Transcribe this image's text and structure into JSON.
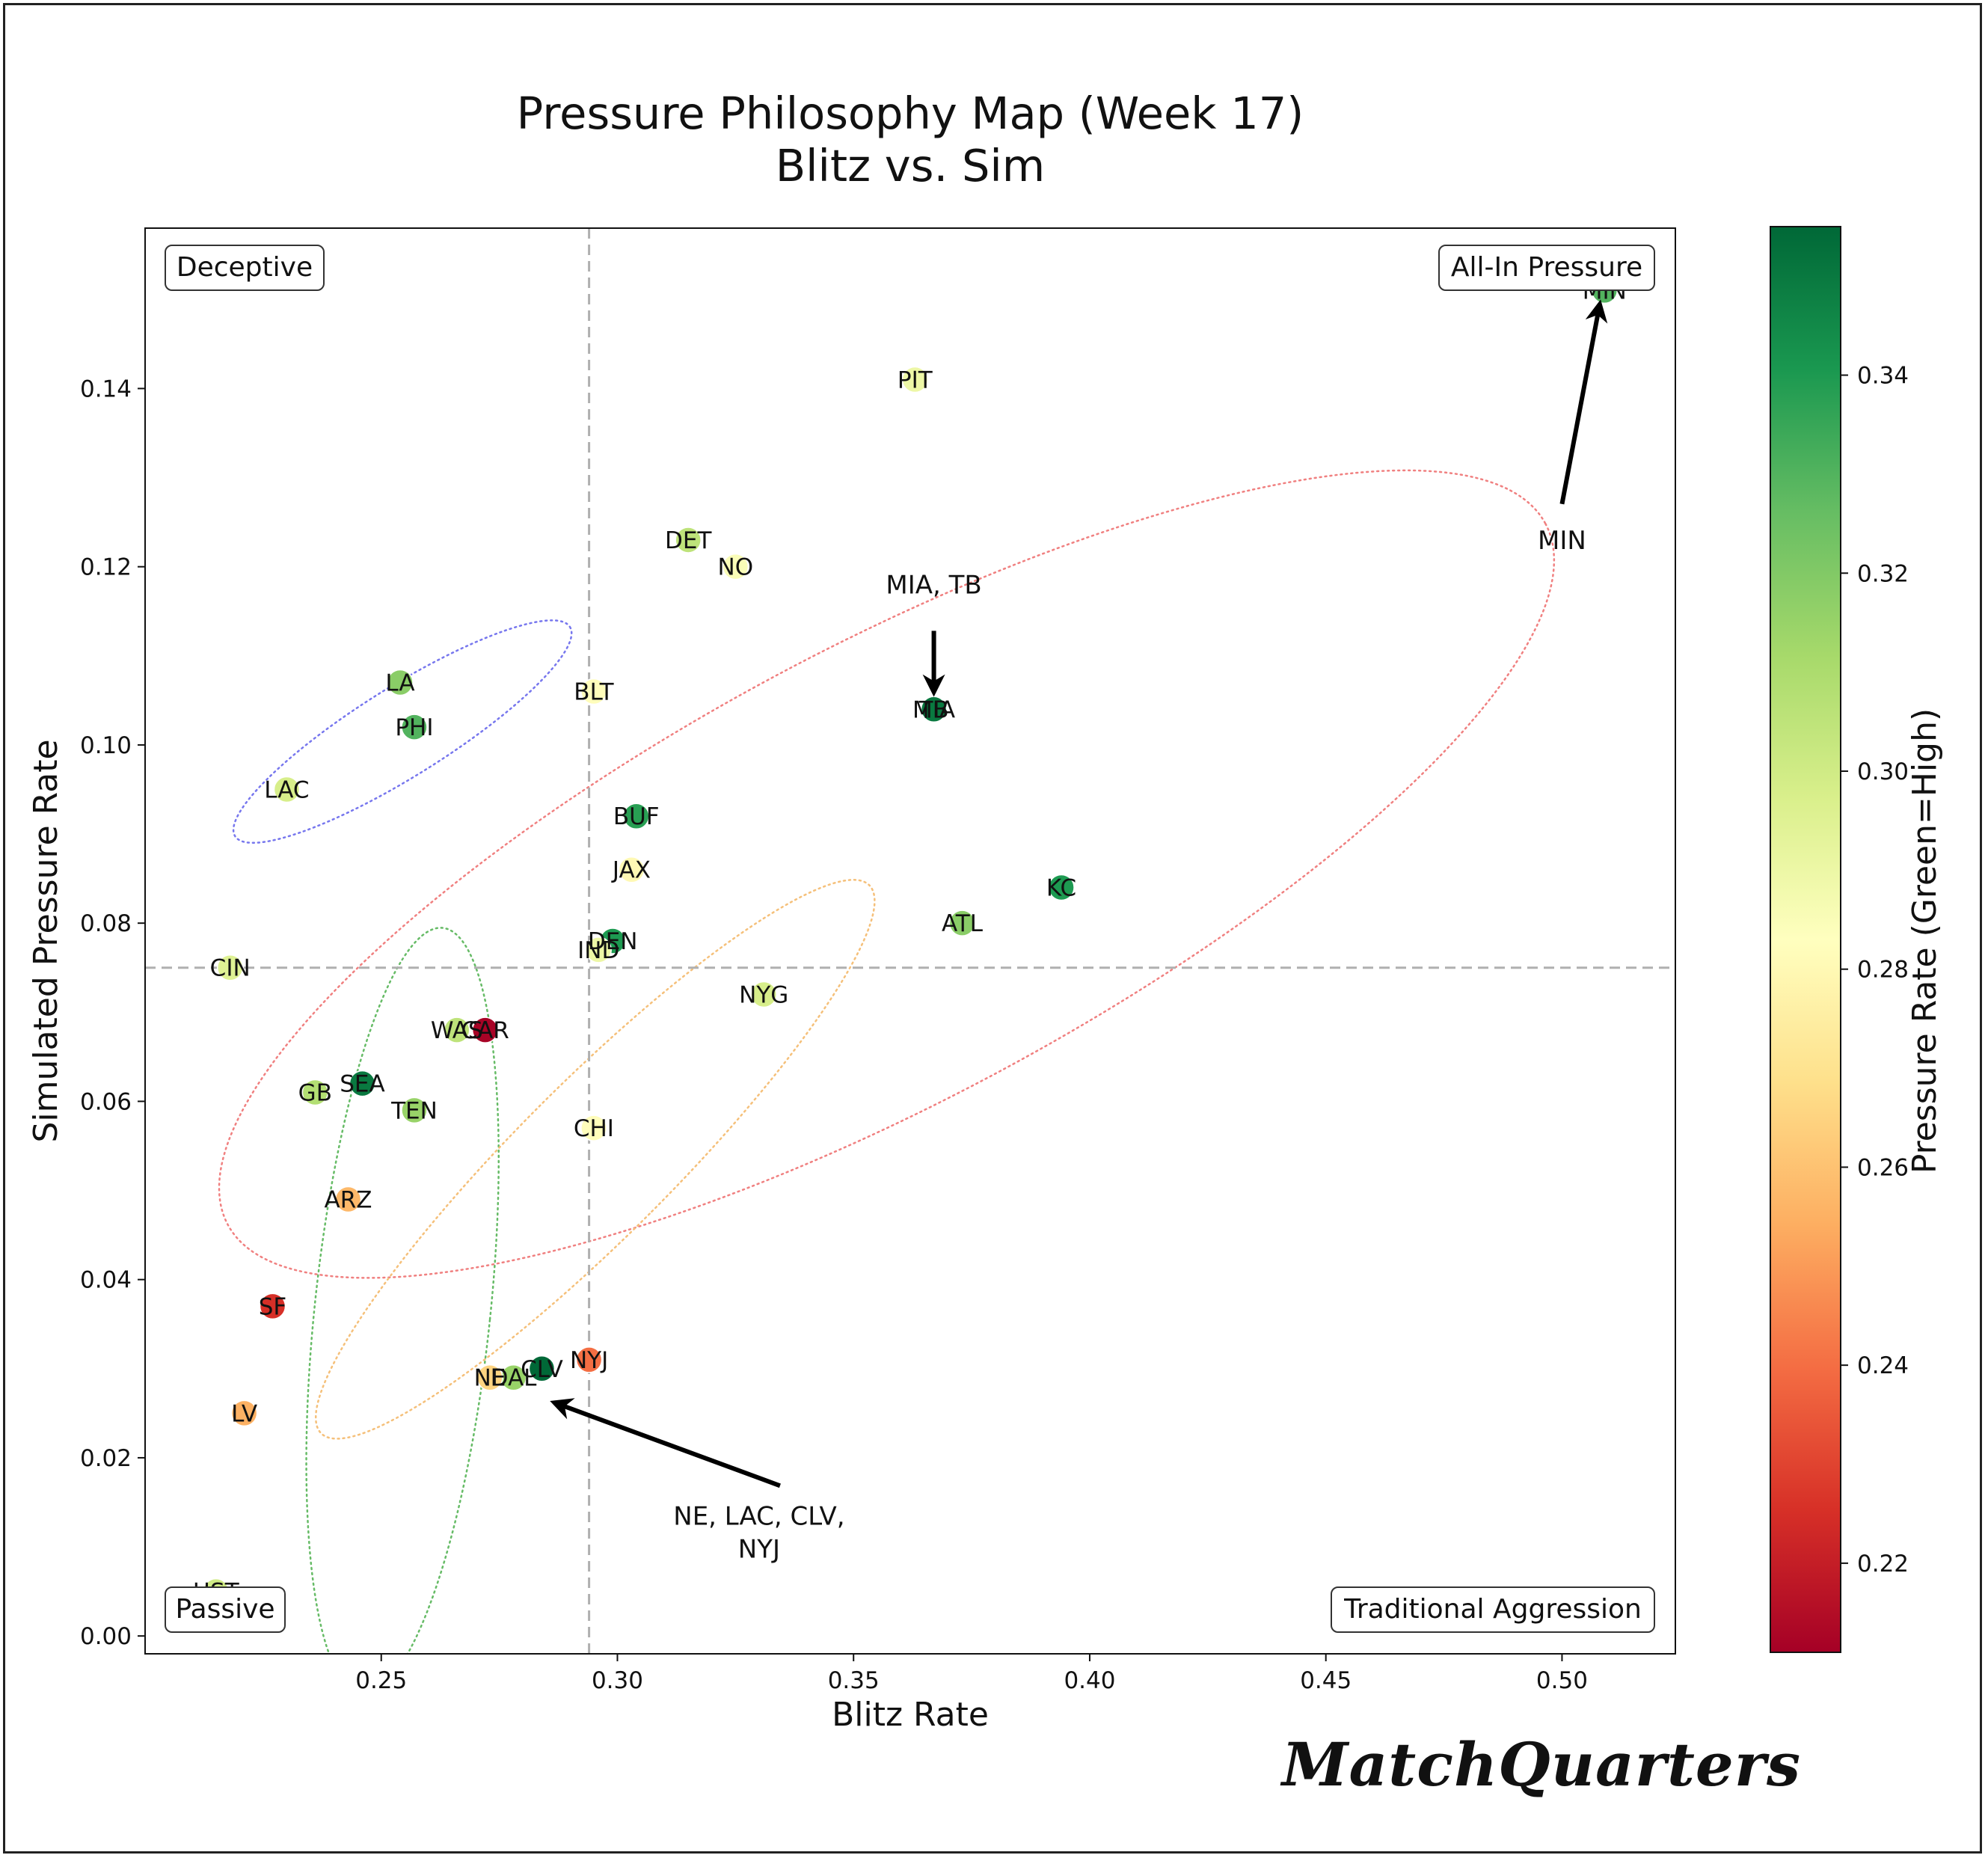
{
  "chart_data": {
    "type": "scatter",
    "title": "Pressure Philosophy Map (Week 17)",
    "subtitle": "Blitz vs. Sim",
    "xlabel": "Blitz Rate",
    "ylabel": "Simulated Pressure Rate",
    "xlim": [
      0.2,
      0.524
    ],
    "ylim": [
      -0.002,
      0.158
    ],
    "xticks": [
      0.25,
      0.3,
      0.35,
      0.4,
      0.45,
      0.5
    ],
    "xtick_labels": [
      "0.25",
      "0.30",
      "0.35",
      "0.40",
      "0.45",
      "0.50"
    ],
    "yticks": [
      0.0,
      0.02,
      0.04,
      0.06,
      0.08,
      0.1,
      0.12,
      0.14
    ],
    "ytick_labels": [
      "0.00",
      "0.02",
      "0.04",
      "0.06",
      "0.08",
      "0.10",
      "0.12",
      "0.14"
    ],
    "mean_lines": {
      "x": 0.294,
      "y": 0.075
    },
    "colorbar": {
      "label": "Pressure Rate (Green=High)",
      "range": [
        0.211,
        0.355
      ],
      "ticks": [
        0.22,
        0.24,
        0.26,
        0.28,
        0.3,
        0.32,
        0.34
      ],
      "tick_labels": [
        "0.22",
        "0.24",
        "0.26",
        "0.28",
        "0.30",
        "0.32",
        "0.34"
      ],
      "colormap": "RdYlGn"
    },
    "points": [
      {
        "team": "MIN",
        "x": 0.509,
        "y": 0.151,
        "pressure": 0.33
      },
      {
        "team": "PIT",
        "x": 0.363,
        "y": 0.141,
        "pressure": 0.29
      },
      {
        "team": "DET",
        "x": 0.315,
        "y": 0.123,
        "pressure": 0.305
      },
      {
        "team": "NO",
        "x": 0.325,
        "y": 0.12,
        "pressure": 0.285
      },
      {
        "team": "MIA",
        "x": 0.367,
        "y": 0.104,
        "pressure": 0.35
      },
      {
        "team": "TB",
        "x": 0.367,
        "y": 0.104,
        "pressure": 0.35
      },
      {
        "team": "LA",
        "x": 0.254,
        "y": 0.107,
        "pressure": 0.318
      },
      {
        "team": "PHI",
        "x": 0.257,
        "y": 0.102,
        "pressure": 0.33
      },
      {
        "team": "LAC",
        "x": 0.23,
        "y": 0.095,
        "pressure": 0.298
      },
      {
        "team": "BLT",
        "x": 0.295,
        "y": 0.106,
        "pressure": 0.282
      },
      {
        "team": "BUF",
        "x": 0.304,
        "y": 0.092,
        "pressure": 0.338
      },
      {
        "team": "JAX",
        "x": 0.303,
        "y": 0.086,
        "pressure": 0.28
      },
      {
        "team": "KC",
        "x": 0.394,
        "y": 0.084,
        "pressure": 0.34
      },
      {
        "team": "ATL",
        "x": 0.373,
        "y": 0.08,
        "pressure": 0.318
      },
      {
        "team": "DEN",
        "x": 0.299,
        "y": 0.078,
        "pressure": 0.34
      },
      {
        "team": "IND",
        "x": 0.296,
        "y": 0.077,
        "pressure": 0.29
      },
      {
        "team": "CIN",
        "x": 0.218,
        "y": 0.075,
        "pressure": 0.295
      },
      {
        "team": "NYG",
        "x": 0.331,
        "y": 0.072,
        "pressure": 0.298
      },
      {
        "team": "WAS",
        "x": 0.266,
        "y": 0.068,
        "pressure": 0.305
      },
      {
        "team": "CAR",
        "x": 0.272,
        "y": 0.068,
        "pressure": 0.212
      },
      {
        "team": "SEA",
        "x": 0.246,
        "y": 0.062,
        "pressure": 0.35
      },
      {
        "team": "GB",
        "x": 0.236,
        "y": 0.061,
        "pressure": 0.308
      },
      {
        "team": "TEN",
        "x": 0.257,
        "y": 0.059,
        "pressure": 0.315
      },
      {
        "team": "CHI",
        "x": 0.295,
        "y": 0.057,
        "pressure": 0.282
      },
      {
        "team": "ARZ",
        "x": 0.243,
        "y": 0.049,
        "pressure": 0.257
      },
      {
        "team": "SF",
        "x": 0.227,
        "y": 0.037,
        "pressure": 0.225
      },
      {
        "team": "NYJ",
        "x": 0.294,
        "y": 0.031,
        "pressure": 0.24
      },
      {
        "team": "CLV",
        "x": 0.284,
        "y": 0.03,
        "pressure": 0.355
      },
      {
        "team": "DAL",
        "x": 0.278,
        "y": 0.029,
        "pressure": 0.315
      },
      {
        "team": "NE",
        "x": 0.273,
        "y": 0.029,
        "pressure": 0.265
      },
      {
        "team": "LV",
        "x": 0.221,
        "y": 0.025,
        "pressure": 0.255
      },
      {
        "team": "HST",
        "x": 0.215,
        "y": 0.005,
        "pressure": 0.3
      }
    ],
    "cluster_ellipses": [
      {
        "color": "#f08080",
        "cx": 0.357,
        "cy": 0.0855,
        "rx": 0.158,
        "ry": 0.0255,
        "angle_deg": 28
      },
      {
        "color": "#7777ee",
        "cx": 0.2545,
        "cy": 0.1015,
        "rx": 0.0418,
        "ry": 0.005,
        "angle_deg": 32
      },
      {
        "color": "#66bb66",
        "cx": 0.2545,
        "cy": 0.0365,
        "rx": 0.0186,
        "ry": 0.0432,
        "angle_deg": -6
      },
      {
        "color": "#f5c07a",
        "cx": 0.2953,
        "cy": 0.0535,
        "rx": 0.0163,
        "ry": 0.0435,
        "angle_deg": -45
      }
    ],
    "callouts": [
      {
        "text": "MIN",
        "x": 0.5,
        "y": 0.122,
        "target_x": 0.508,
        "target_y": 0.1495
      },
      {
        "text": "MIA, TB",
        "x": 0.367,
        "y": 0.117,
        "target_x": 0.367,
        "target_y": 0.1059
      },
      {
        "text": "NE, LAC, CLV,",
        "text2": "NYJ",
        "x": 0.33,
        "y": 0.0125,
        "target_x": 0.2866,
        "target_y": 0.0262
      }
    ],
    "quadrant_labels": {
      "top_left": "Deceptive",
      "top_right": "All-In Pressure",
      "bottom_left": "Passive",
      "bottom_right": "Traditional Aggression"
    }
  },
  "watermark": "MatchQuarters"
}
